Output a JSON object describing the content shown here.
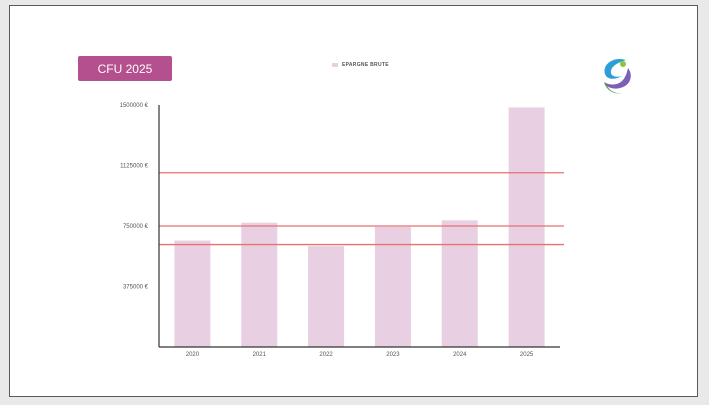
{
  "badge": {
    "label": "CFU 2025"
  },
  "colors": {
    "badge": "#b5508f",
    "bar": "#e8cfe2",
    "ref_line": "#e8706e",
    "axis": "#333333"
  },
  "logo": {
    "icon": "swirl-logo-icon"
  },
  "chart_data": {
    "type": "bar",
    "categories": [
      "2020",
      "2021",
      "2022",
      "2023",
      "2024",
      "2025"
    ],
    "series": [
      {
        "name": "EPARGNE BRUTE",
        "values": [
          660000,
          770000,
          625000,
          745000,
          785000,
          1485000
        ]
      }
    ],
    "reference_lines": [
      1080000,
      750000,
      635000
    ],
    "yticks": [
      375000,
      750000,
      1125000,
      1500000
    ],
    "ytick_labels": [
      "375000 €",
      "750000 €",
      "1125000 €",
      "1500000 €"
    ],
    "ylim": [
      0,
      1500000
    ],
    "legend_position": "top-center",
    "grid": false
  }
}
